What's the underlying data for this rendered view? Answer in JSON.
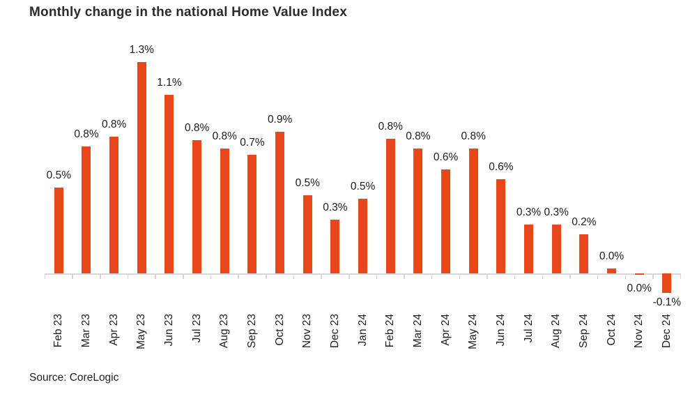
{
  "header": {
    "title": "Monthly change in the national Home Value Index"
  },
  "footer": {
    "source": "Source: CoreLogic"
  },
  "chart_data": {
    "type": "bar",
    "title": "Monthly change in the national Home Value Index",
    "xlabel": "",
    "ylabel": "",
    "ylim": [
      -0.2,
      1.4
    ],
    "grid": false,
    "legend": "none",
    "bar_color": "#E8471A",
    "axis_color": "#d6d6d6",
    "label_color": "#1a1a1a",
    "categories": [
      "Feb 23",
      "Mar 23",
      "Apr 23",
      "May 23",
      "Jun 23",
      "Jul 23",
      "Aug 23",
      "Sep 23",
      "Oct 23",
      "Nov 23",
      "Dec 23",
      "Jan 24",
      "Feb 24",
      "Mar 24",
      "Apr 24",
      "May 24",
      "Jun 24",
      "Jul 24",
      "Aug 24",
      "Sep 24",
      "Oct 24",
      "Nov 24",
      "Dec 24"
    ],
    "labels": [
      "0.5%",
      "0.8%",
      "0.8%",
      "1.3%",
      "1.1%",
      "0.8%",
      "0.8%",
      "0.7%",
      "0.9%",
      "0.5%",
      "0.3%",
      "0.5%",
      "0.8%",
      "0.8%",
      "0.6%",
      "0.8%",
      "0.6%",
      "0.3%",
      "0.3%",
      "0.2%",
      "0.0%",
      "0.0%",
      "-0.1%"
    ],
    "values": [
      0.53,
      0.78,
      0.84,
      1.3,
      1.1,
      0.82,
      0.77,
      0.73,
      0.87,
      0.48,
      0.33,
      0.46,
      0.83,
      0.77,
      0.64,
      0.77,
      0.58,
      0.3,
      0.3,
      0.24,
      0.03,
      -0.01,
      -0.12
    ],
    "source": "Source: CoreLogic"
  }
}
